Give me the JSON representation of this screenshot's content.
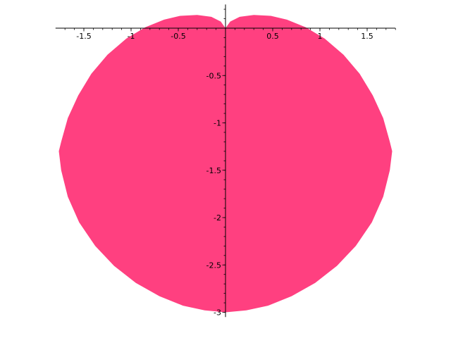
{
  "chart_data": {
    "type": "area",
    "title": "",
    "xlabel": "",
    "ylabel": "",
    "fill_color": "#ff4080",
    "grid": false,
    "xlim": [
      -1.8,
      1.8
    ],
    "ylim": [
      -3.05,
      0.25
    ],
    "x_tick_values": [
      -1.5,
      -1,
      -0.5,
      0.5,
      1,
      1.5
    ],
    "x_tick_labels": [
      "-1.5",
      "-1",
      "-0.5",
      "0.5",
      "1",
      "1.5"
    ],
    "y_tick_values": [
      -0.5,
      -1,
      -1.5,
      -2,
      -2.5,
      -3
    ],
    "y_tick_labels": [
      "-0.5",
      "-1",
      "-1.5",
      "-2",
      "-2.5",
      "-3"
    ],
    "series": [
      {
        "x": [
          0,
          0.05,
          0.15,
          0.3,
          0.48,
          0.65,
          0.85,
          1.05,
          1.25,
          1.42,
          1.56,
          1.67,
          1.74,
          1.765,
          1.74,
          1.67,
          1.55,
          1.38,
          1.18,
          0.95,
          0.7,
          0.45,
          0.22,
          0,
          -0.22,
          -0.45,
          -0.7,
          -0.95,
          -1.18,
          -1.38,
          -1.55,
          -1.67,
          -1.74,
          -1.765,
          -1.74,
          -1.67,
          -1.56,
          -1.42,
          -1.25,
          -1.05,
          -0.85,
          -0.65,
          -0.48,
          -0.3,
          -0.15,
          -0.05,
          0
        ],
        "y": [
          0,
          0.07,
          0.12,
          0.14,
          0.13,
          0.09,
          0.01,
          -0.11,
          -0.28,
          -0.48,
          -0.71,
          -0.95,
          -1.2,
          -1.3,
          -1.5,
          -1.78,
          -2.05,
          -2.3,
          -2.51,
          -2.69,
          -2.83,
          -2.93,
          -2.98,
          -3,
          -2.98,
          -2.93,
          -2.83,
          -2.69,
          -2.51,
          -2.3,
          -2.05,
          -1.78,
          -1.5,
          -1.3,
          -1.2,
          -0.95,
          -0.71,
          -0.48,
          -0.28,
          -0.11,
          0.01,
          0.09,
          0.13,
          0.14,
          0.12,
          0.07,
          0
        ]
      }
    ]
  }
}
